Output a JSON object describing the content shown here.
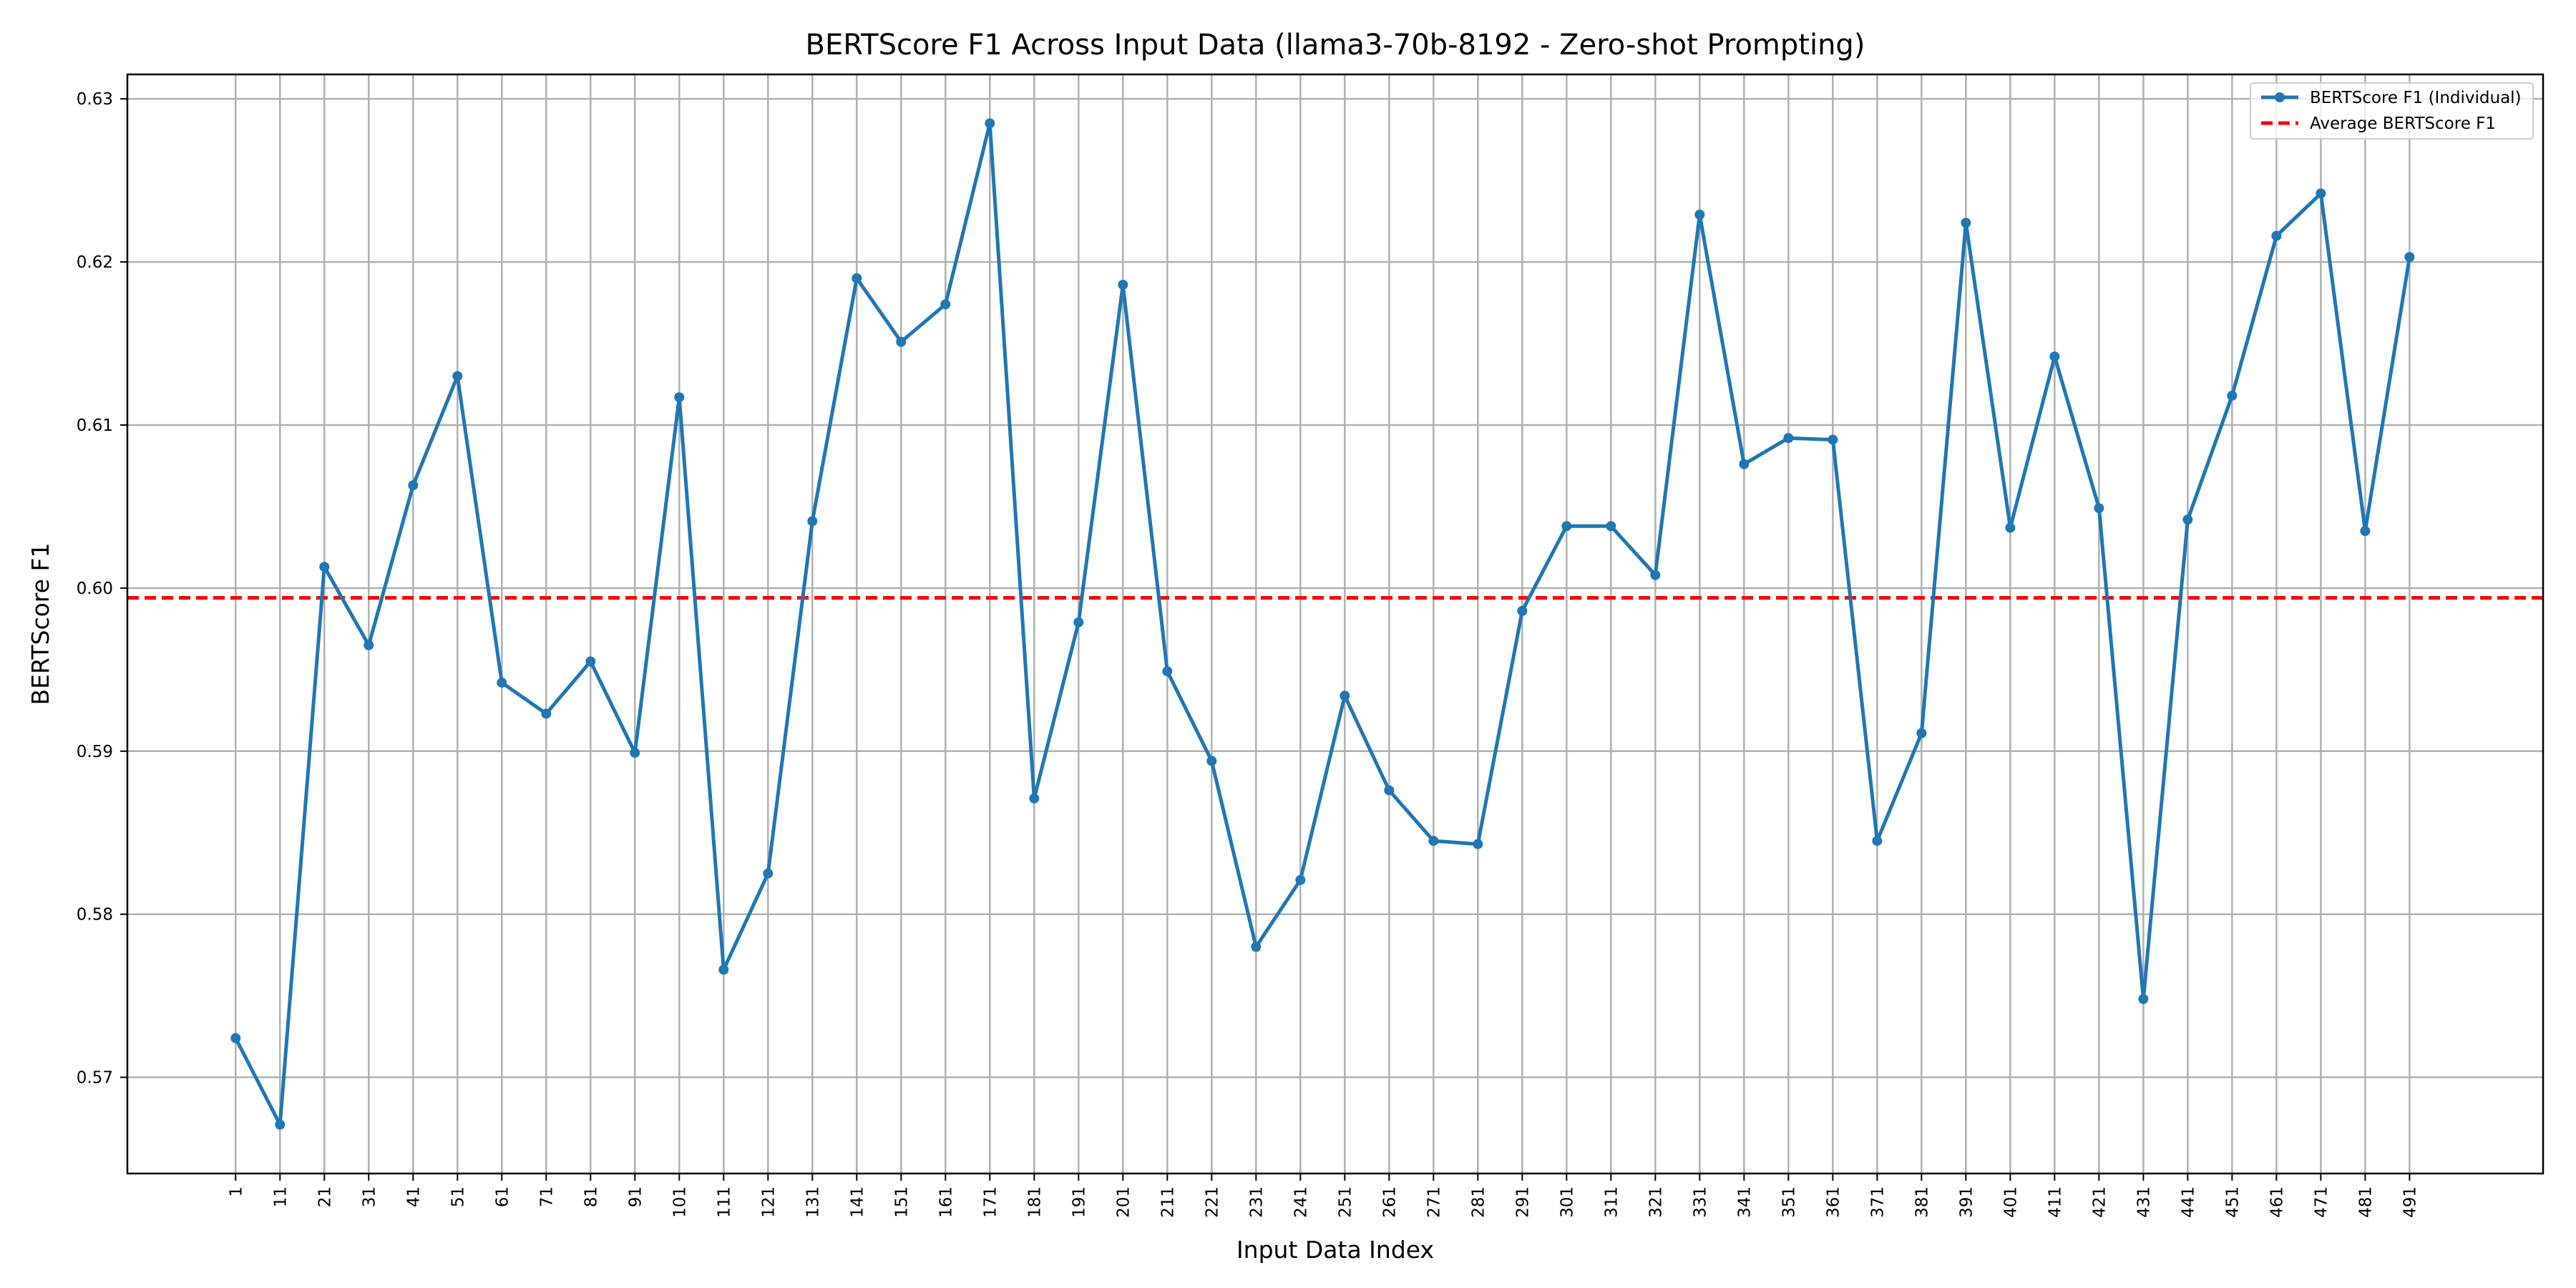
{
  "chart_data": {
    "type": "line",
    "title": "BERTScore F1 Across Input Data (llama3-70b-8192 - Zero-shot Prompting)",
    "xlabel": "Input Data Index",
    "ylabel": "BERTScore F1",
    "x": [
      1,
      11,
      21,
      31,
      41,
      51,
      61,
      71,
      81,
      91,
      101,
      111,
      121,
      131,
      141,
      151,
      161,
      171,
      181,
      191,
      201,
      211,
      221,
      231,
      241,
      251,
      261,
      271,
      281,
      291,
      301,
      311,
      321,
      331,
      341,
      351,
      361,
      371,
      381,
      391,
      401,
      411,
      421,
      431,
      441,
      451,
      461,
      471,
      481,
      491
    ],
    "xticks": [
      "1",
      "11",
      "21",
      "31",
      "41",
      "51",
      "61",
      "71",
      "81",
      "91",
      "101",
      "111",
      "121",
      "131",
      "141",
      "151",
      "161",
      "171",
      "181",
      "191",
      "201",
      "211",
      "221",
      "231",
      "241",
      "251",
      "261",
      "271",
      "281",
      "291",
      "301",
      "311",
      "321",
      "331",
      "341",
      "351",
      "361",
      "371",
      "381",
      "391",
      "401",
      "411",
      "421",
      "431",
      "441",
      "451",
      "461",
      "471",
      "481",
      "491"
    ],
    "xlim": [
      -23.4,
      521.1
    ],
    "ylim": [
      0.5641,
      0.6315
    ],
    "yticks": [
      0.57,
      0.58,
      0.59,
      0.6,
      0.61,
      0.62,
      0.63
    ],
    "ytick_labels": [
      "0.57",
      "0.58",
      "0.59",
      "0.60",
      "0.61",
      "0.62",
      "0.63"
    ],
    "grid": true,
    "legend_position": "top-right",
    "series": [
      {
        "name": "BERTScore F1 (Individual)",
        "color": "#1f77b4",
        "style": "solid-with-markers",
        "values": [
          0.5724,
          0.5671,
          0.6013,
          0.5965,
          0.6063,
          0.613,
          0.5942,
          0.5923,
          0.5955,
          0.5899,
          0.6117,
          0.5766,
          0.5825,
          0.6041,
          0.619,
          0.6151,
          0.6174,
          0.6285,
          0.5871,
          0.5979,
          0.6186,
          0.5949,
          0.5894,
          0.578,
          0.5821,
          0.5934,
          0.5876,
          0.5845,
          0.5843,
          0.5986,
          0.6038,
          0.6038,
          0.6008,
          0.6229,
          0.6076,
          0.6092,
          0.6091,
          0.5845,
          0.5911,
          0.6224,
          0.6037,
          0.6142,
          0.6049,
          0.5748,
          0.6042,
          0.6118,
          0.6216,
          0.6242,
          0.6035,
          0.6203
        ]
      },
      {
        "name": "Average BERTScore F1",
        "color": "#ff0000",
        "style": "dashed",
        "value": 0.5994
      }
    ]
  }
}
